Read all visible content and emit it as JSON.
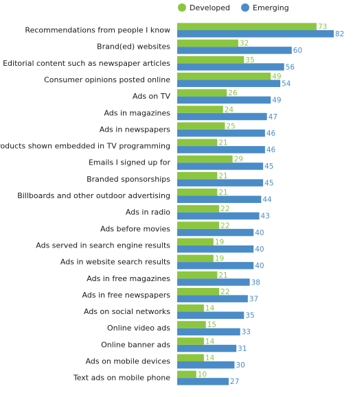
{
  "chart_data": {
    "type": "bar",
    "orientation": "horizontal",
    "legend": {
      "position": "top-right"
    },
    "categories": [
      "Recommendations from people I know",
      "Brand(ed) websites",
      "Editorial content such as newspaper articles",
      "Consumer opinions posted online",
      "Ads on TV",
      "Ads in magazines",
      "Ads in newspapers",
      "Products shown embedded in TV programming",
      "Emails I signed up for",
      "Branded sponsorships",
      "Billboards and other outdoor advertising",
      "Ads in radio",
      "Ads before movies",
      "Ads served in search engine results",
      "Ads in website search results",
      "Ads in free magazines",
      "Ads in free newspapers",
      "Ads on social networks",
      "Online video ads",
      "Online banner ads",
      "Ads on mobile devices",
      "Text ads on mobile phone"
    ],
    "series": [
      {
        "name": "Developed",
        "color": "#8cc63f",
        "values": [
          73,
          32,
          35,
          49,
          26,
          24,
          25,
          21,
          29,
          21,
          21,
          22,
          22,
          19,
          19,
          21,
          22,
          14,
          15,
          14,
          14,
          10
        ]
      },
      {
        "name": "Emerging",
        "color": "#4a8cc8",
        "values": [
          82,
          60,
          56,
          54,
          49,
          47,
          46,
          46,
          45,
          45,
          44,
          43,
          40,
          40,
          40,
          38,
          37,
          35,
          33,
          31,
          30,
          27
        ]
      }
    ],
    "xlim": [
      0,
      100
    ]
  }
}
